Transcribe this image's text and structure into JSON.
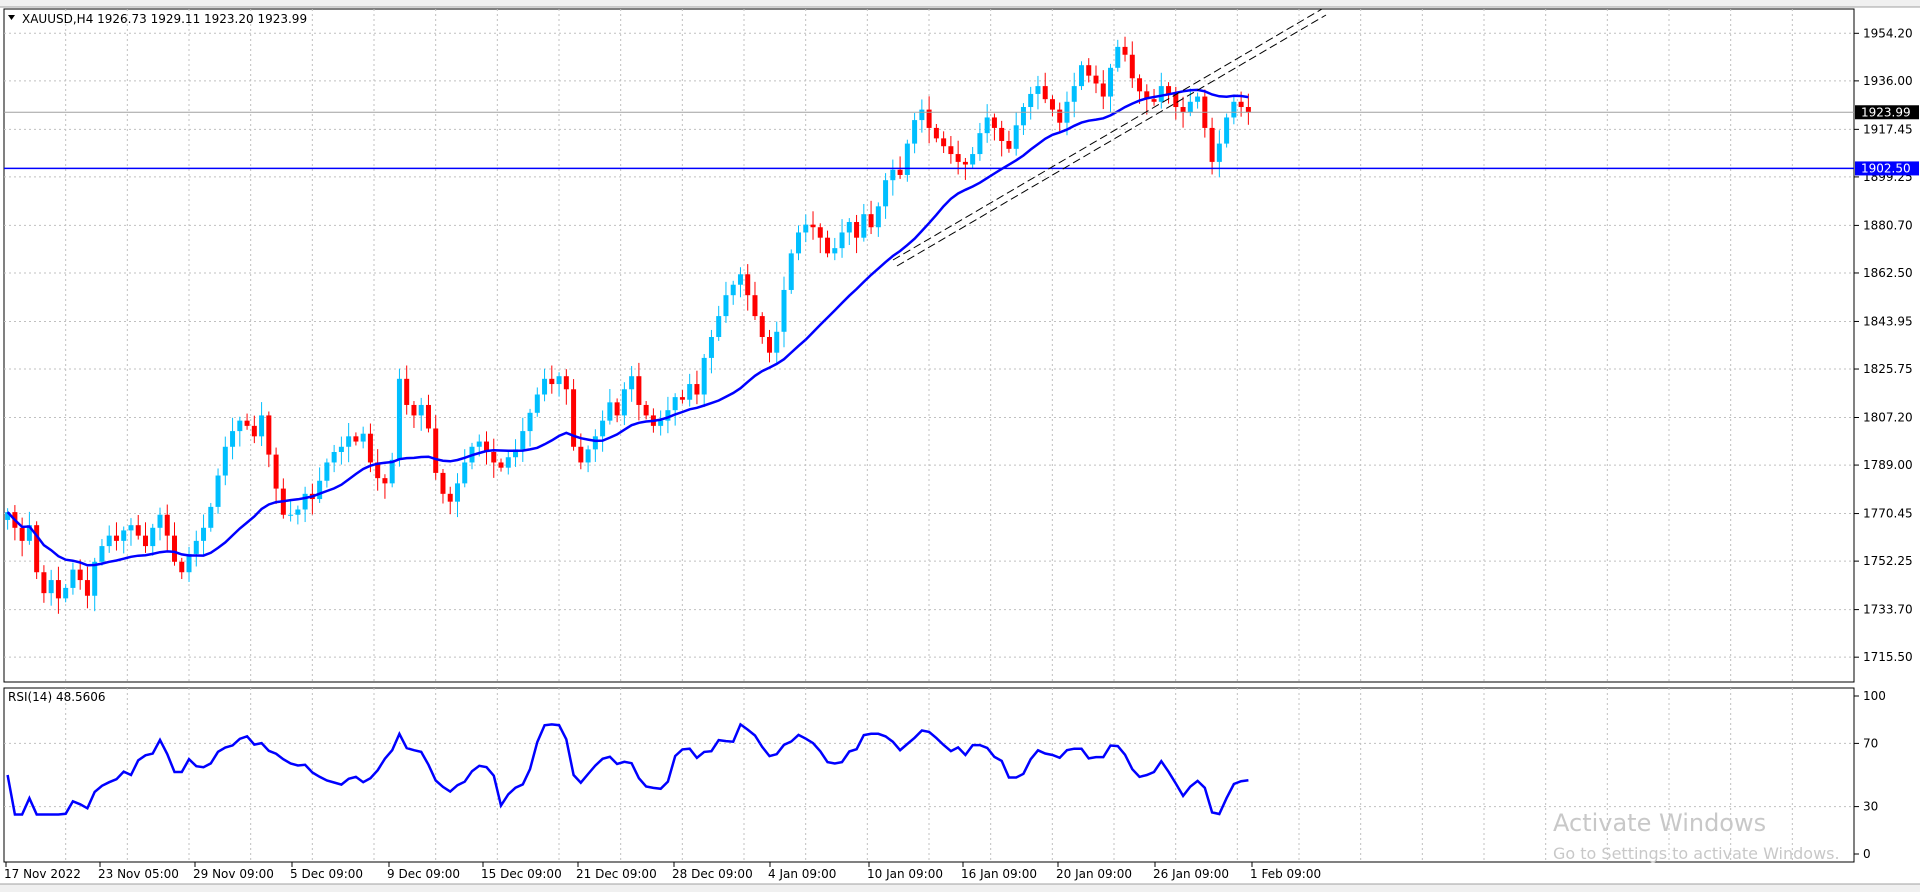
{
  "chart_data": [
    {
      "type": "candlestick",
      "title": "XAUUSD,H4  1926.73 1929.11 1923.20 1923.99",
      "symbol": "XAUUSD",
      "timeframe": "H4",
      "ohlc": {
        "open": 1926.73,
        "high": 1929.11,
        "low": 1923.2,
        "close": 1923.99
      },
      "ylim": [
        1706.0,
        1963.5
      ],
      "yticks": [
        1954.2,
        1936.0,
        1917.45,
        1899.25,
        1880.7,
        1862.5,
        1843.95,
        1825.75,
        1807.2,
        1789.0,
        1770.45,
        1752.25,
        1733.7,
        1715.5
      ],
      "current_price": {
        "value": 1923.99,
        "label": "1923.99"
      },
      "horizontal_level": {
        "value": 1902.5,
        "label": "1902.50",
        "color": "#0000ff"
      },
      "xticks": [
        "17 Nov 2022",
        "23 Nov 05:00",
        "29 Nov 09:00",
        "5 Dec 09:00",
        "9 Dec 09:00",
        "15 Dec 09:00",
        "21 Dec 09:00",
        "28 Dec 09:00",
        "4 Jan 09:00",
        "10 Jan 09:00",
        "16 Jan 09:00",
        "20 Jan 09:00",
        "26 Jan 09:00",
        "1 Feb 09:00"
      ],
      "bull_color": "#00bfff",
      "bear_color": "#ff0000",
      "ma_color": "#0000ff",
      "closes": [
        1771,
        1765,
        1760,
        1766,
        1748,
        1740,
        1745,
        1738,
        1742,
        1749,
        1745,
        1739,
        1752,
        1758,
        1762,
        1760,
        1764,
        1766,
        1762,
        1758,
        1765,
        1770,
        1762,
        1752,
        1748,
        1755,
        1760,
        1765,
        1773,
        1785,
        1796,
        1802,
        1806,
        1804,
        1800,
        1808,
        1793,
        1780,
        1770,
        1770,
        1772,
        1778,
        1776,
        1783,
        1790,
        1794,
        1796,
        1800,
        1798,
        1801,
        1790,
        1784,
        1782,
        1791,
        1822,
        1812,
        1808,
        1812,
        1803,
        1786,
        1778,
        1775,
        1782,
        1790,
        1796,
        1798,
        1794,
        1790,
        1788,
        1792,
        1795,
        1802,
        1809,
        1816,
        1822,
        1820,
        1823,
        1818,
        1796,
        1790,
        1795,
        1800,
        1806,
        1813,
        1808,
        1818,
        1823,
        1812,
        1808,
        1804,
        1806,
        1810,
        1815,
        1814,
        1820,
        1816,
        1830,
        1838,
        1846,
        1854,
        1858,
        1862,
        1854,
        1846,
        1838,
        1832,
        1840,
        1856,
        1870,
        1878,
        1881,
        1880,
        1876,
        1870,
        1872,
        1878,
        1882,
        1876,
        1885,
        1880,
        1888,
        1898,
        1902,
        1900,
        1912,
        1921,
        1925,
        1918,
        1914,
        1911,
        1908,
        1905,
        1904,
        1908,
        1916,
        1922,
        1918,
        1913,
        1910,
        1919,
        1926,
        1931,
        1934,
        1929,
        1925,
        1920,
        1928,
        1934,
        1942,
        1938,
        1935,
        1930,
        1941,
        1949,
        1946,
        1937,
        1932,
        1929,
        1928,
        1934,
        1931,
        1926,
        1924,
        1928,
        1930,
        1918,
        1905,
        1912,
        1922,
        1928,
        1926,
        1924
      ],
      "rsi": {
        "label": "RSI(14) 48.5606",
        "period": 14,
        "value": 48.5606,
        "ylim": [
          0,
          100
        ],
        "yticks": [
          100,
          70,
          30,
          0
        ],
        "color": "#0000ff"
      }
    }
  ],
  "watermark": {
    "line1": "Activate Windows",
    "line2": "Go to Settings to activate Windows."
  }
}
